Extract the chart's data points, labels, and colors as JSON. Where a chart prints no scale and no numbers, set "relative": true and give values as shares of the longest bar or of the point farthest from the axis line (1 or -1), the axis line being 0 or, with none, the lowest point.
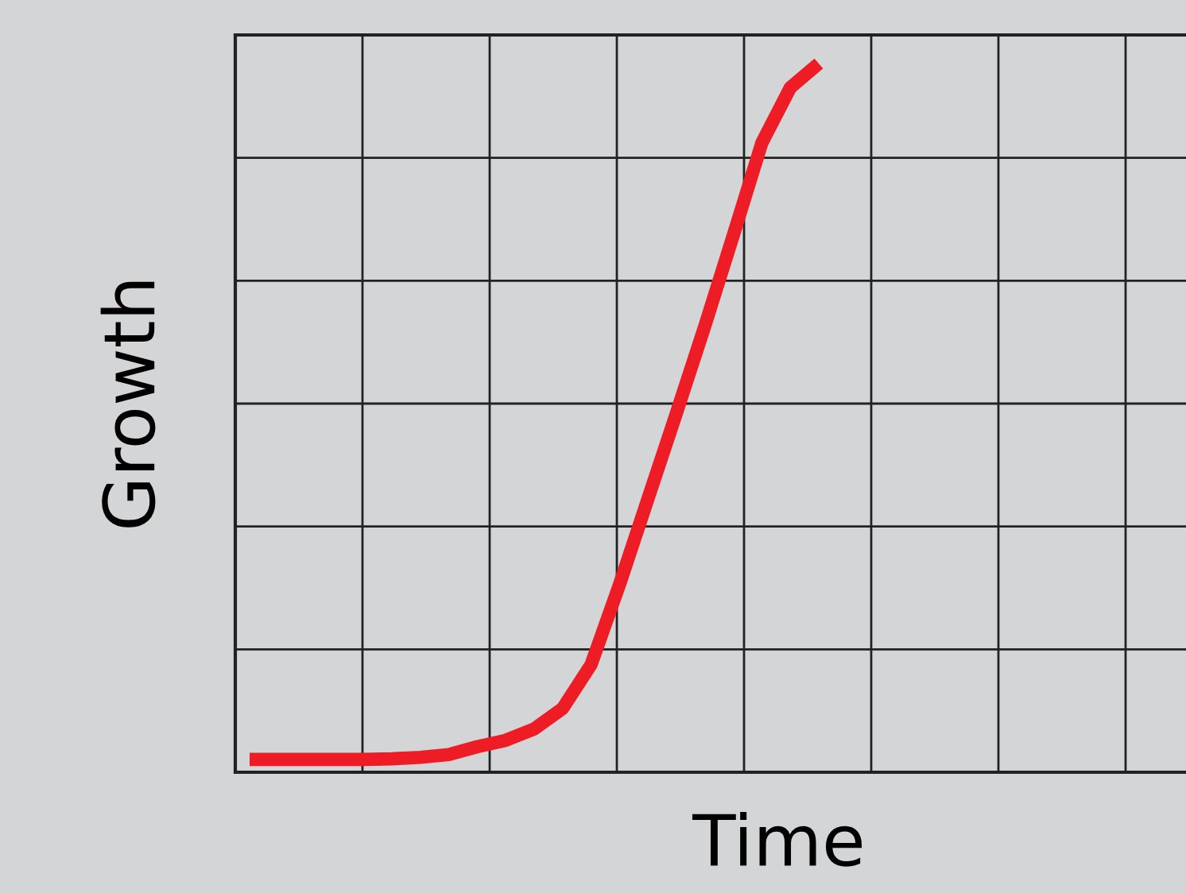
{
  "chart_data": {
    "type": "line",
    "xlabel": "Time",
    "ylabel": "Growth",
    "relative": true,
    "grid": true,
    "tick_labels": false,
    "marker": "none",
    "line_style": "solid",
    "categories": [
      null,
      null,
      null,
      null,
      null,
      null,
      null,
      null,
      null,
      null,
      null,
      null,
      null,
      null,
      null,
      null,
      null,
      null,
      null,
      null,
      null
    ],
    "series": [
      {
        "color": "#ee1c25",
        "values": [
          0.018,
          0.018,
          0.018,
          0.018,
          0.018,
          0.019,
          0.021,
          0.025,
          0.036,
          0.045,
          0.061,
          0.09,
          0.152,
          0.265,
          0.386,
          0.507,
          0.63,
          0.758,
          0.888,
          0.966,
          1
        ]
      }
    ]
  }
}
